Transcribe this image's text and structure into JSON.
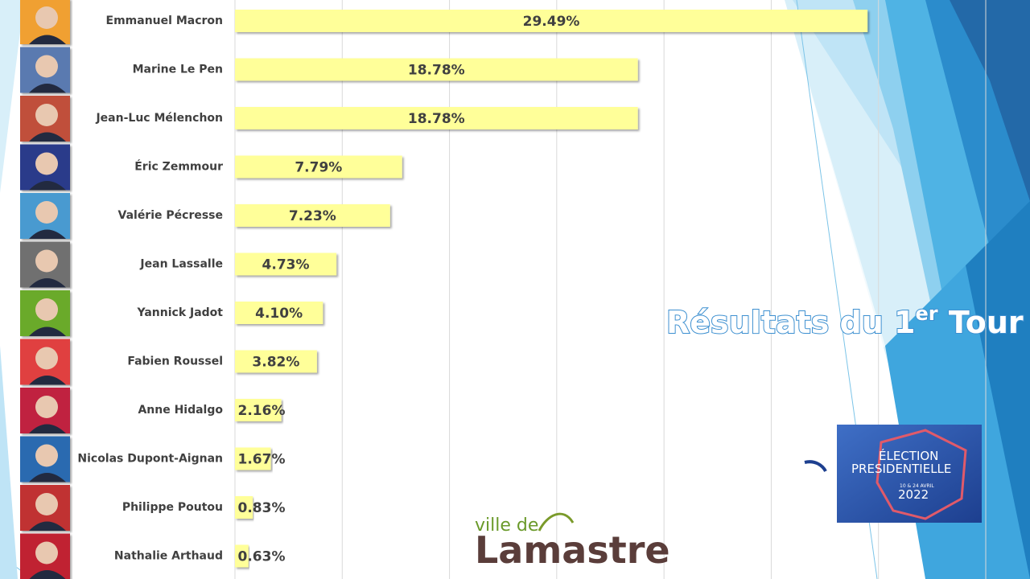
{
  "chart_data": {
    "type": "bar",
    "orientation": "horizontal",
    "title": [
      "Résultats du 1",
      "er",
      " Tour"
    ],
    "categories": [
      "Emmanuel Macron",
      "Marine Le Pen",
      "Jean-Luc Mélenchon",
      "Éric Zemmour",
      "Valérie Pécresse",
      "Jean Lassalle",
      "Yannick Jadot",
      "Fabien Roussel",
      "Anne Hidalgo",
      "Nicolas Dupont-Aignan",
      "Philippe Poutou",
      "Nathalie Arthaud"
    ],
    "values": [
      29.49,
      18.78,
      18.78,
      7.79,
      7.23,
      4.73,
      4.1,
      3.82,
      2.16,
      1.67,
      0.83,
      0.63
    ],
    "value_labels": [
      "29.49%",
      "18.78%",
      "18.78%",
      "7.79%",
      "7.23%",
      "4.73%",
      "4.10%",
      "3.82%",
      "2.16%",
      "1.67%",
      "0.83%",
      "0.63%"
    ],
    "color": "#ffff99",
    "xlim": [
      0,
      35
    ],
    "xticks": [
      0,
      5,
      10,
      15,
      20,
      25,
      30,
      35
    ],
    "grid": true
  },
  "badge": {
    "line1": "ÉLECTION",
    "line2": "PRESIDENTIELLE",
    "dates": "10 & 24 AVRIL",
    "year": "2022"
  },
  "logo": {
    "line1": "ville de",
    "line2": "Lamastre"
  }
}
